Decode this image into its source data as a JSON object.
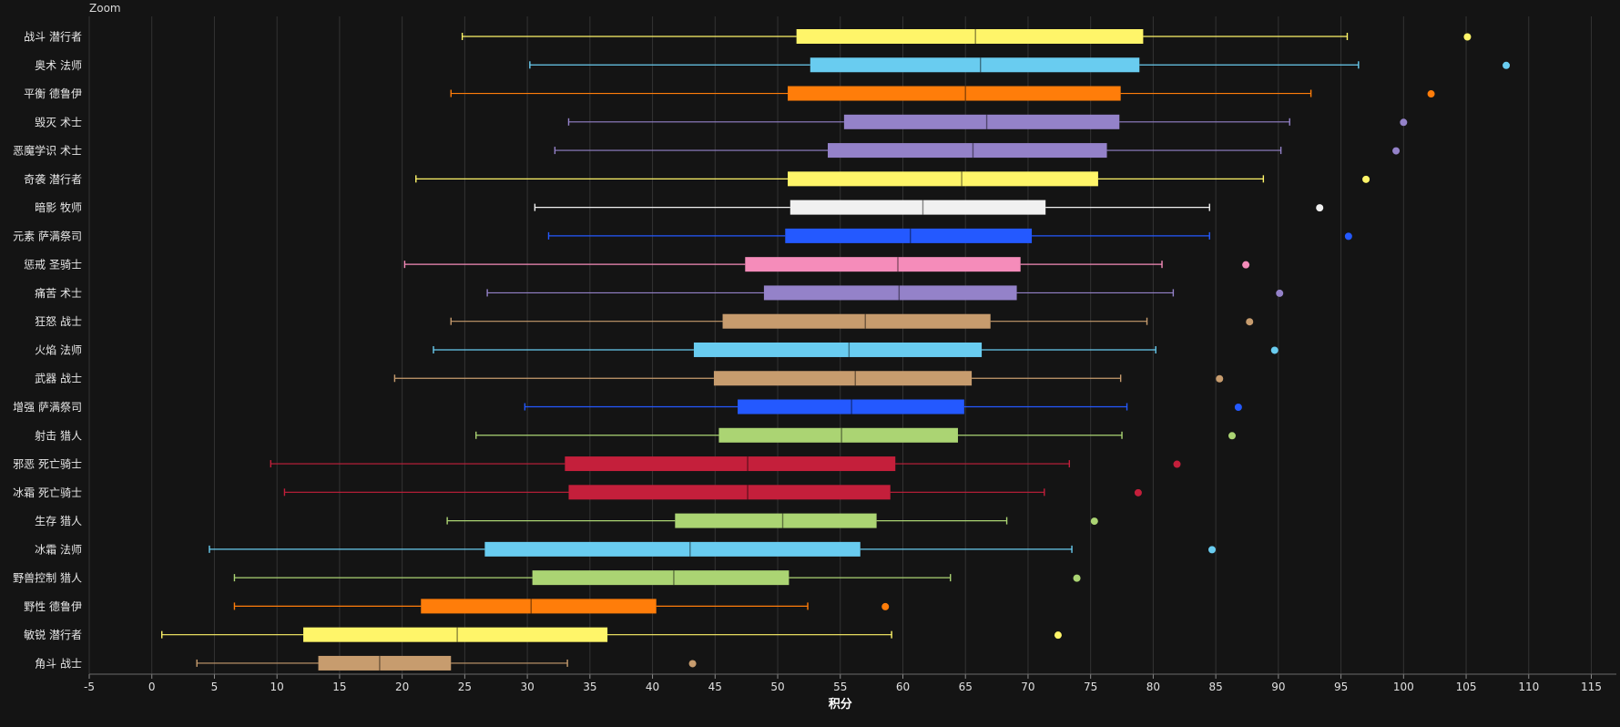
{
  "toolbar": {
    "zoom_label": "Zoom"
  },
  "chart_data": {
    "type": "boxplot",
    "title": "",
    "xlabel": "积分",
    "ylabel": "",
    "xlim": [
      -5,
      117
    ],
    "xticks": [
      -5,
      0,
      5,
      10,
      15,
      20,
      25,
      30,
      35,
      40,
      45,
      50,
      55,
      60,
      65,
      70,
      75,
      80,
      85,
      90,
      95,
      100,
      105,
      110,
      115
    ],
    "grid": true,
    "series": [
      {
        "name": "战斗 潜行者",
        "color": "#fff569",
        "min": 24.8,
        "q1": 51.5,
        "median": 65.8,
        "q3": 79.2,
        "max": 95.5,
        "outlier": 105.1
      },
      {
        "name": "奥术 法师",
        "color": "#69ccf0",
        "min": 30.2,
        "q1": 52.6,
        "median": 66.2,
        "q3": 78.9,
        "max": 96.4,
        "outlier": 108.2
      },
      {
        "name": "平衡 德鲁伊",
        "color": "#ff7d0a",
        "min": 23.9,
        "q1": 50.8,
        "median": 65.0,
        "q3": 77.4,
        "max": 92.6,
        "outlier": 102.2
      },
      {
        "name": "毁灭 术士",
        "color": "#9482c9",
        "min": 33.3,
        "q1": 55.3,
        "median": 66.7,
        "q3": 77.3,
        "max": 90.9,
        "outlier": 100.0
      },
      {
        "name": "恶魔学识 术士",
        "color": "#9482c9",
        "min": 32.2,
        "q1": 54.0,
        "median": 65.6,
        "q3": 76.3,
        "max": 90.2,
        "outlier": 99.4
      },
      {
        "name": "奇袭 潜行者",
        "color": "#fff569",
        "min": 21.1,
        "q1": 50.8,
        "median": 64.7,
        "q3": 75.6,
        "max": 88.8,
        "outlier": 97.0
      },
      {
        "name": "暗影 牧师",
        "color": "#f0f0f0",
        "min": 30.6,
        "q1": 51.0,
        "median": 61.6,
        "q3": 71.4,
        "max": 84.5,
        "outlier": 93.3
      },
      {
        "name": "元素 萨满祭司",
        "color": "#2459ff",
        "min": 31.7,
        "q1": 50.6,
        "median": 60.6,
        "q3": 70.3,
        "max": 84.5,
        "outlier": 95.6
      },
      {
        "name": "惩戒 圣骑士",
        "color": "#f58cba",
        "min": 20.2,
        "q1": 47.4,
        "median": 59.6,
        "q3": 69.4,
        "max": 80.7,
        "outlier": 87.4
      },
      {
        "name": "痛苦 术士",
        "color": "#9482c9",
        "min": 26.8,
        "q1": 48.9,
        "median": 59.7,
        "q3": 69.1,
        "max": 81.6,
        "outlier": 90.1
      },
      {
        "name": "狂怒 战士",
        "color": "#c79c6e",
        "min": 23.9,
        "q1": 45.6,
        "median": 57.0,
        "q3": 67.0,
        "max": 79.5,
        "outlier": 87.7
      },
      {
        "name": "火焰 法师",
        "color": "#69ccf0",
        "min": 22.5,
        "q1": 43.3,
        "median": 55.7,
        "q3": 66.3,
        "max": 80.2,
        "outlier": 89.7
      },
      {
        "name": "武器 战士",
        "color": "#c79c6e",
        "min": 19.4,
        "q1": 44.9,
        "median": 56.2,
        "q3": 65.5,
        "max": 77.4,
        "outlier": 85.3
      },
      {
        "name": "增强 萨满祭司",
        "color": "#2459ff",
        "min": 29.8,
        "q1": 46.8,
        "median": 55.9,
        "q3": 64.9,
        "max": 77.9,
        "outlier": 86.8
      },
      {
        "name": "射击 猎人",
        "color": "#abd473",
        "min": 25.9,
        "q1": 45.3,
        "median": 55.1,
        "q3": 64.4,
        "max": 77.5,
        "outlier": 86.3
      },
      {
        "name": "邪恶 死亡骑士",
        "color": "#c41f3b",
        "min": 9.5,
        "q1": 33.0,
        "median": 47.6,
        "q3": 59.4,
        "max": 73.3,
        "outlier": 81.9
      },
      {
        "name": "冰霜 死亡骑士",
        "color": "#c41f3b",
        "min": 10.6,
        "q1": 33.3,
        "median": 47.6,
        "q3": 59.0,
        "max": 71.3,
        "outlier": 78.8
      },
      {
        "name": "生存 猎人",
        "color": "#abd473",
        "min": 23.6,
        "q1": 41.8,
        "median": 50.4,
        "q3": 57.9,
        "max": 68.3,
        "outlier": 75.3
      },
      {
        "name": "冰霜 法师",
        "color": "#69ccf0",
        "min": 4.6,
        "q1": 26.6,
        "median": 43.0,
        "q3": 56.6,
        "max": 73.5,
        "outlier": 84.7
      },
      {
        "name": "野兽控制 猎人",
        "color": "#abd473",
        "min": 6.6,
        "q1": 30.4,
        "median": 41.7,
        "q3": 50.9,
        "max": 63.8,
        "outlier": 73.9
      },
      {
        "name": "野性 德鲁伊",
        "color": "#ff7d0a",
        "min": 6.6,
        "q1": 21.5,
        "median": 30.3,
        "q3": 40.3,
        "max": 52.4,
        "outlier": 58.6
      },
      {
        "name": "敏锐 潜行者",
        "color": "#fff569",
        "min": 0.8,
        "q1": 12.1,
        "median": 24.4,
        "q3": 36.4,
        "max": 59.1,
        "outlier": 72.4
      },
      {
        "name": "角斗 战士",
        "color": "#c79c6e",
        "min": 3.6,
        "q1": 13.3,
        "median": 18.2,
        "q3": 23.9,
        "max": 33.2,
        "outlier": 43.2
      }
    ]
  }
}
